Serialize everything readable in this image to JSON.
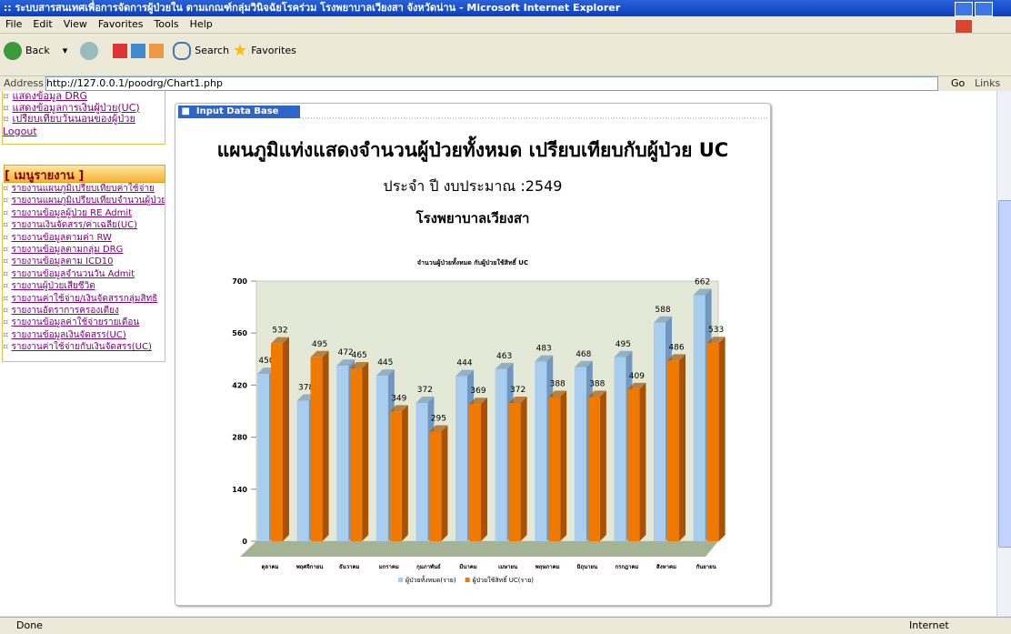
{
  "window": {
    "title": ":: ระบบสารสนเทศเพื่อการจัดการผู้ป่วยใน ตามเกณฑ์กลุ่มวินิจฉัยโรคร่วม โรงพยาบาลเวียงสา จังหวัดน่าน - Microsoft Internet Explorer"
  },
  "menu": [
    "File",
    "Edit",
    "View",
    "Favorites",
    "Tools",
    "Help"
  ],
  "toolbar": {
    "back": "Back",
    "search": "Search",
    "favorites": "Favorites"
  },
  "address": {
    "label": "Address",
    "url": "http://127.0.0.1/poodrg/Chart1.php",
    "go": "Go",
    "links": "Links"
  },
  "sidebar": {
    "top_links": [
      "แสดงข้อมูล DRG",
      "แสดงข้อมูลการเงินผู้ป่วย(UC)",
      "เปรียบเทียบวันนอนของผู้ป่วย"
    ],
    "logout": "Logout",
    "heading": "[ เมนูรายงาน ]",
    "links": [
      "รายงานแผนภูมิเปรียบเทียบค่าใช้จ่าย",
      "รายงานแผนภูมิเปรียบเทียบจำนวนผู้ป่วย",
      "รายงานข้อมูลผู้ป่วย RE Admit",
      "รายงานเงินจัดสรร/ค่าเฉลี่ย(UC)",
      "รายงานข้อมูลตามค่า RW",
      "รายงานข้อมูลตามกลุ่ม DRG",
      "รายงานข้อมูลตาม ICD10",
      "รายงานข้อมูลจำนวนวัน Admit",
      "รายงานผู้ป่วยเสียชีวิต",
      "รายงานค่าใช้จ่าย/เงินจัดสรรกลุ่มสิทธิ",
      "รายงานอัตราการครองเตียง",
      "รายงานข้อมูลค่าใช้จ่ายรายเดือน",
      "รายงานข้อมูลเงินจัดสรร(UC)",
      "รายงานค่าใช้จ่ายกับเงินจัดสรร(UC)"
    ]
  },
  "panel": {
    "tab": "Input Data Base",
    "heading": "แผนภูมิแท่งแสดงจำนวนผู้ป่วยทั้งหมด เปรียบเทียบกับผู้ป่วย UC",
    "subtitle": "ประจำ ปี งบประมาณ :2549",
    "hospital": "โรงพยาบาลเวียงสา"
  },
  "chart": {
    "type": "bar",
    "title": "จำนวนผู้ป่วยทั้งหมด กับผู้ป่วยใช้สิทธิ์ UC",
    "categories": [
      "ตุลาคม",
      "พฤศจิกายน",
      "ธันวาคม",
      "มกราคม",
      "กุมภาพันธ์",
      "มีนาคม",
      "เมษายน",
      "พฤษภาคม",
      "มิถุนายน",
      "กรกฎาคม",
      "สิงหาคม",
      "กันยายน"
    ],
    "series": [
      {
        "name": "ผู้ป่วยทั้งหมด(ราย)",
        "color": "#a9cdef",
        "values": [
          450,
          378,
          472,
          445,
          372,
          444,
          463,
          483,
          468,
          495,
          588,
          662
        ]
      },
      {
        "name": "ผู้ป่วยใช้สิทธิ์ UC(ราย)",
        "color": "#f07a00",
        "values": [
          532,
          495,
          465,
          349,
          295,
          369,
          372,
          388,
          388,
          409,
          486,
          533
        ]
      }
    ],
    "ylim": [
      0,
      700
    ],
    "yticks": [
      0,
      140,
      280,
      420,
      560,
      700
    ]
  },
  "status": {
    "left": "Done",
    "right": "Internet"
  }
}
